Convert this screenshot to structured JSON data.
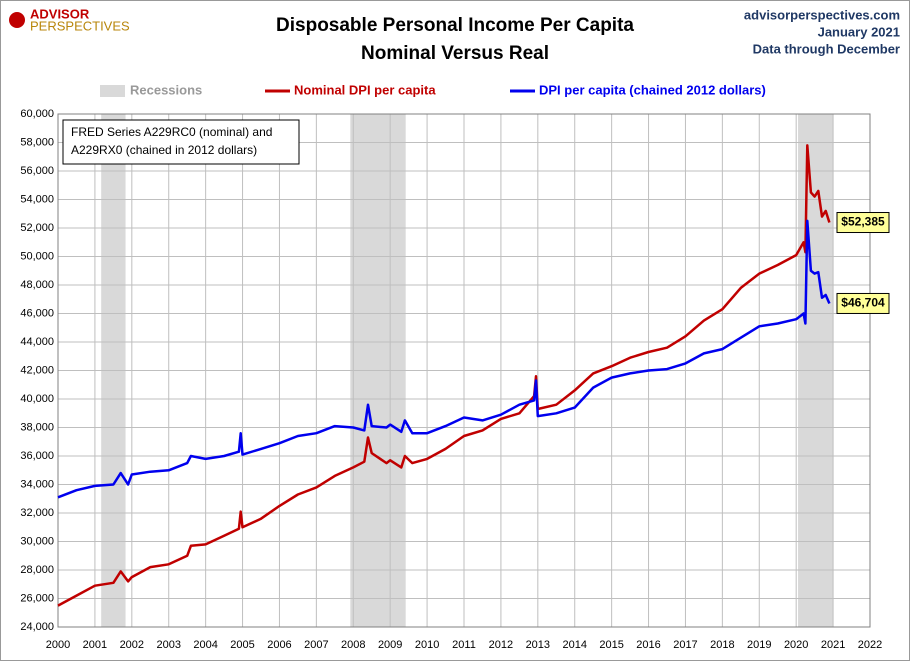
{
  "chart_data": {
    "type": "line",
    "logo": [
      "ADVISOR",
      "PERSPECTIVES"
    ],
    "title": [
      "Disposable Personal Income Per Capita",
      "Nominal Versus Real"
    ],
    "source_lines": [
      "advisorperspectives.com",
      "January 2021",
      "Data through December"
    ],
    "annotation": [
      "FRED Series A229RC0 (nominal) and",
      "A229RX0 (chained in 2012 dollars)"
    ],
    "recession_label": "Recessions",
    "recession_color": "#d9d9d9",
    "recessions": [
      [
        2001.17,
        2001.83
      ],
      [
        2007.92,
        2009.42
      ],
      [
        2020.05,
        2021.0
      ]
    ],
    "x": [
      2000.0,
      2000.5,
      2001.0,
      2001.5,
      2001.7,
      2001.9,
      2002.0,
      2002.5,
      2003.0,
      2003.5,
      2003.6,
      2004.0,
      2004.5,
      2004.9,
      2004.95,
      2005.0,
      2005.5,
      2006.0,
      2006.5,
      2007.0,
      2007.5,
      2008.0,
      2008.3,
      2008.4,
      2008.5,
      2008.9,
      2009.0,
      2009.3,
      2009.4,
      2009.6,
      2010.0,
      2010.5,
      2011.0,
      2011.5,
      2012.0,
      2012.5,
      2012.9,
      2012.95,
      2013.0,
      2013.5,
      2014.0,
      2014.5,
      2015.0,
      2015.5,
      2016.0,
      2016.5,
      2017.0,
      2017.5,
      2018.0,
      2018.5,
      2019.0,
      2019.5,
      2020.0,
      2020.2,
      2020.25,
      2020.3,
      2020.4,
      2020.5,
      2020.6,
      2020.7,
      2020.8,
      2020.9
    ],
    "series": [
      {
        "name": "Nominal DPI per capita",
        "color": "#c00000",
        "end_label": "$52,385",
        "values": [
          25500,
          26200,
          26900,
          27100,
          27900,
          27200,
          27500,
          28200,
          28400,
          29000,
          29700,
          29800,
          30400,
          30900,
          32100,
          31000,
          31600,
          32500,
          33300,
          33800,
          34600,
          35200,
          35600,
          37300,
          36200,
          35500,
          35700,
          35200,
          36000,
          35500,
          35800,
          36500,
          37400,
          37800,
          38600,
          39000,
          40200,
          41600,
          39300,
          39600,
          40600,
          41800,
          42300,
          42900,
          43300,
          43600,
          44400,
          45500,
          46300,
          47800,
          48800,
          49400,
          50100,
          51000,
          50300,
          57800,
          54500,
          54200,
          54600,
          52800,
          53200,
          52385
        ]
      },
      {
        "name": "DPI per capita (chained 2012 dollars)",
        "color": "#0000ee",
        "end_label": "$46,704",
        "values": [
          33100,
          33600,
          33900,
          34000,
          34800,
          34000,
          34700,
          34900,
          35000,
          35500,
          36000,
          35800,
          36000,
          36300,
          37600,
          36100,
          36500,
          36900,
          37400,
          37600,
          38100,
          38000,
          37800,
          39600,
          38100,
          38000,
          38200,
          37700,
          38500,
          37600,
          37600,
          38100,
          38700,
          38500,
          38900,
          39600,
          39900,
          41300,
          38800,
          39000,
          39400,
          40800,
          41500,
          41800,
          42000,
          42100,
          42500,
          43200,
          43500,
          44300,
          45100,
          45300,
          45600,
          46000,
          45300,
          52500,
          49000,
          48800,
          48900,
          47100,
          47300,
          46704
        ]
      }
    ],
    "xlim": [
      2000,
      2022
    ],
    "xticks": [
      2000,
      2001,
      2002,
      2003,
      2004,
      2005,
      2006,
      2007,
      2008,
      2009,
      2010,
      2011,
      2012,
      2013,
      2014,
      2015,
      2016,
      2017,
      2018,
      2019,
      2020,
      2021,
      2022
    ],
    "ylim": [
      24000,
      60000
    ],
    "yticks": [
      {
        "value": 24000,
        "label": "24,000"
      },
      {
        "value": 26000,
        "label": "26,000"
      },
      {
        "value": 28000,
        "label": "28,000"
      },
      {
        "value": 30000,
        "label": "30,000"
      },
      {
        "value": 32000,
        "label": "32,000"
      },
      {
        "value": 34000,
        "label": "34,000"
      },
      {
        "value": 36000,
        "label": "36,000"
      },
      {
        "value": 38000,
        "label": "38,000"
      },
      {
        "value": 40000,
        "label": "40,000"
      },
      {
        "value": 42000,
        "label": "42,000"
      },
      {
        "value": 44000,
        "label": "44,000"
      },
      {
        "value": 46000,
        "label": "46,000"
      },
      {
        "value": 48000,
        "label": "48,000"
      },
      {
        "value": 50000,
        "label": "50,000"
      },
      {
        "value": 52000,
        "label": "52,000"
      },
      {
        "value": 54000,
        "label": "54,000"
      },
      {
        "value": 56000,
        "label": "56,000"
      },
      {
        "value": 58000,
        "label": "58,000"
      },
      {
        "value": 60000,
        "label": "60,000"
      }
    ],
    "grid": true
  }
}
